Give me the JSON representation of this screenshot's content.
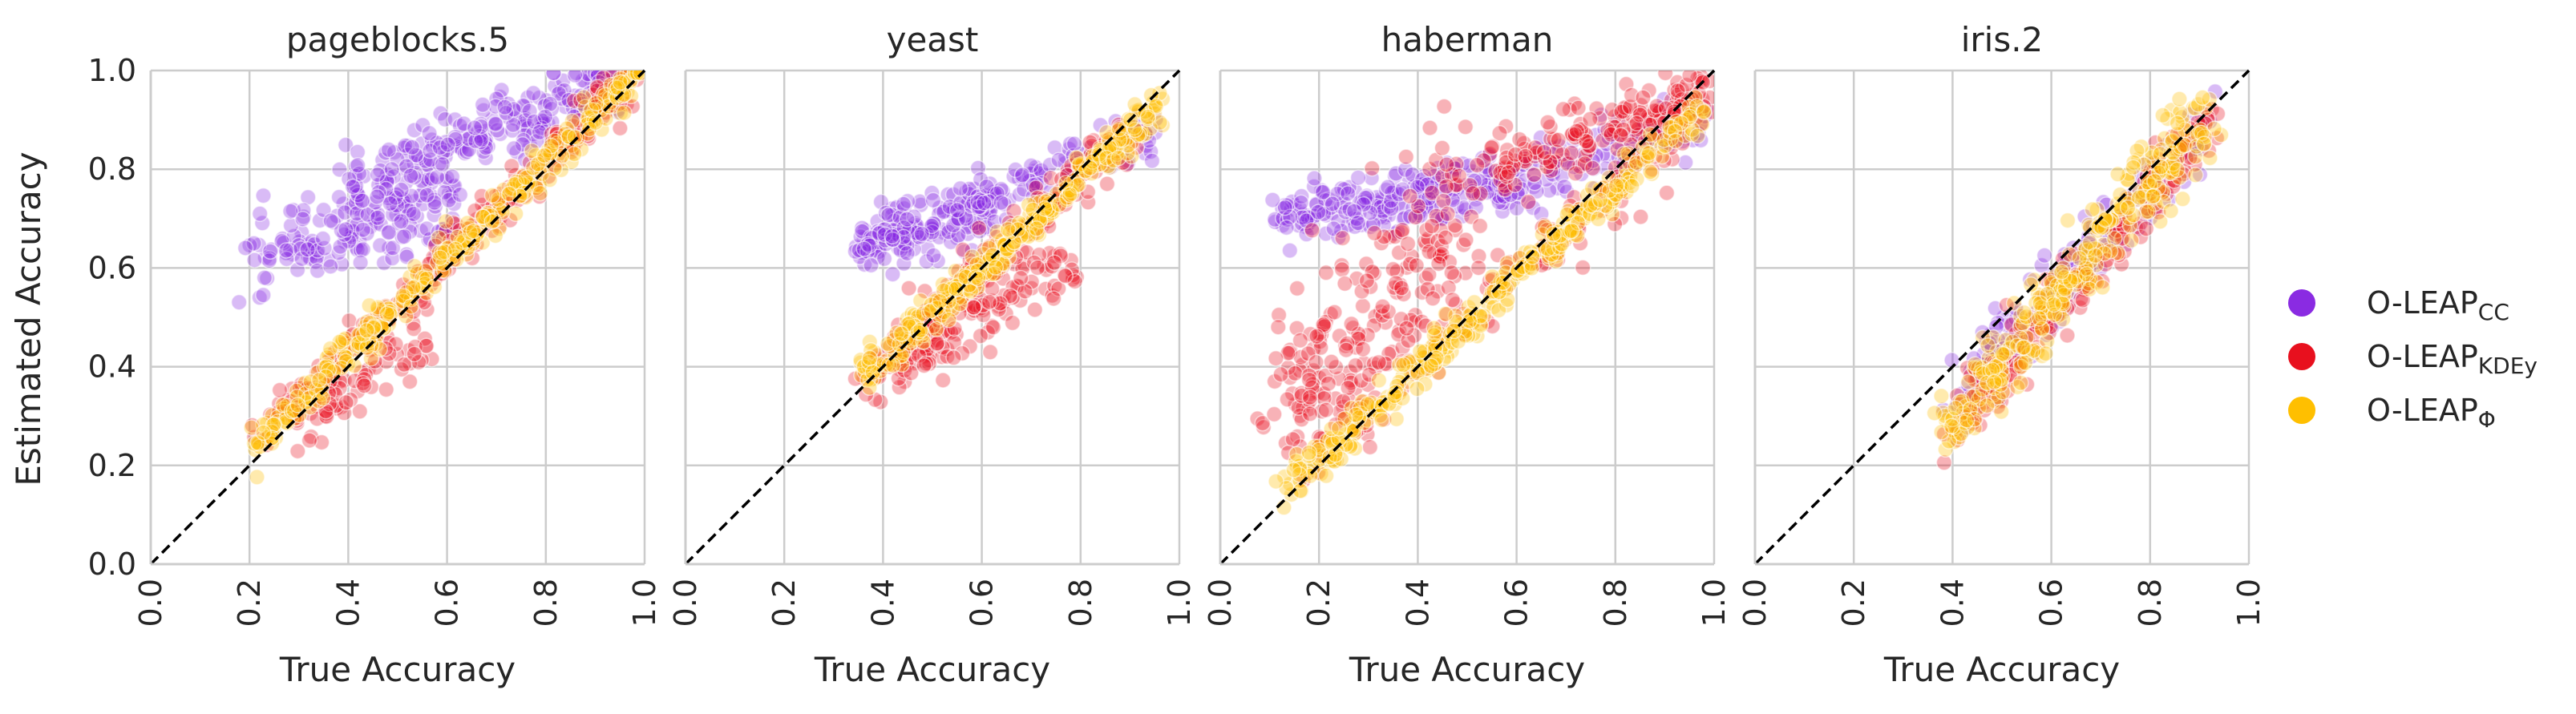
{
  "chart_data": {
    "type": "scatter",
    "layout": "facet-grid-1x4",
    "xlabel": "True Accuracy",
    "ylabel": "Estimated Accuracy",
    "xlim": [
      0.0,
      1.0
    ],
    "ylim": [
      0.0,
      1.0
    ],
    "xticks": [
      "0.0",
      "0.2",
      "0.4",
      "0.6",
      "0.8",
      "1.0"
    ],
    "yticks": [
      "0.0",
      "0.2",
      "0.4",
      "0.6",
      "0.8",
      "1.0"
    ],
    "grid": true,
    "diagonal_reference": "y = x, black dashed",
    "legend": {
      "placement": "right",
      "items": [
        {
          "base": "O-LEAP",
          "sub": "CC",
          "color": "#8a2be2"
        },
        {
          "base": "O-LEAP",
          "sub": "KDEy",
          "color": "#e8101e"
        },
        {
          "base": "O-LEAP",
          "sub": "Φ",
          "color": "#ffbf00"
        }
      ]
    },
    "panels": [
      {
        "title": "pageblocks.5",
        "series": [
          {
            "color": "#8a2be2",
            "clusters": [
              {
                "cx": [
                  0.2,
                  0.62
                ],
                "cy": [
                  0.64,
                  0.72
                ],
                "spread": 0.045,
                "n": 170
              },
              {
                "cx": [
                  0.4,
                  0.95
                ],
                "cy": [
                  0.76,
                  0.98
                ],
                "spread": 0.035,
                "n": 230
              }
            ]
          },
          {
            "color": "#e8101e",
            "clusters": [
              {
                "cx": [
                  0.22,
                  0.98
                ],
                "cy": [
                  0.25,
                  1.0
                ],
                "spread": 0.025,
                "n": 250
              },
              {
                "cx": [
                  0.3,
                  0.55
                ],
                "cy": [
                  0.28,
                  0.45
                ],
                "spread": 0.03,
                "n": 60
              }
            ]
          },
          {
            "color": "#ffbf00",
            "clusters": [
              {
                "cx": [
                  0.21,
                  0.99
                ],
                "cy": [
                  0.24,
                  1.0
                ],
                "spread": 0.02,
                "n": 320
              }
            ]
          }
        ]
      },
      {
        "title": "yeast",
        "series": [
          {
            "color": "#8a2be2",
            "clusters": [
              {
                "cx": [
                  0.35,
                  0.62
                ],
                "cy": [
                  0.64,
                  0.72
                ],
                "spread": 0.03,
                "n": 180
              },
              {
                "cx": [
                  0.58,
                  0.95
                ],
                "cy": [
                  0.72,
                  0.88
                ],
                "spread": 0.025,
                "n": 100
              }
            ]
          },
          {
            "color": "#e8101e",
            "clusters": [
              {
                "cx": [
                  0.36,
                  0.92
                ],
                "cy": [
                  0.37,
                  0.9
                ],
                "spread": 0.03,
                "n": 200
              },
              {
                "cx": [
                  0.42,
                  0.78
                ],
                "cy": [
                  0.38,
                  0.62
                ],
                "spread": 0.03,
                "n": 100
              }
            ]
          },
          {
            "color": "#ffbf00",
            "clusters": [
              {
                "cx": [
                  0.36,
                  0.96
                ],
                "cy": [
                  0.38,
                  0.93
                ],
                "spread": 0.02,
                "n": 300
              }
            ]
          }
        ]
      },
      {
        "title": "haberman",
        "series": [
          {
            "color": "#8a2be2",
            "clusters": [
              {
                "cx": [
                  0.12,
                  0.6
                ],
                "cy": [
                  0.7,
                  0.78
                ],
                "spread": 0.03,
                "n": 220
              },
              {
                "cx": [
                  0.55,
                  0.98
                ],
                "cy": [
                  0.76,
                  0.9
                ],
                "spread": 0.03,
                "n": 130
              }
            ]
          },
          {
            "color": "#e8101e",
            "clusters": [
              {
                "cx": [
                  0.12,
                  0.5
                ],
                "cy": [
                  0.3,
                  0.75
                ],
                "spread": 0.08,
                "n": 220
              },
              {
                "cx": [
                  0.55,
                  0.99
                ],
                "cy": [
                  0.8,
                  0.95
                ],
                "spread": 0.03,
                "n": 170
              },
              {
                "cx": [
                  0.2,
                  0.95
                ],
                "cy": [
                  0.25,
                  0.9
                ],
                "spread": 0.04,
                "n": 120
              }
            ]
          },
          {
            "color": "#ffbf00",
            "clusters": [
              {
                "cx": [
                  0.12,
                  0.98
                ],
                "cy": [
                  0.14,
                  0.93
                ],
                "spread": 0.02,
                "n": 340
              }
            ]
          }
        ]
      },
      {
        "title": "iris.2",
        "series": [
          {
            "color": "#8a2be2",
            "clusters": [
              {
                "cx": [
                  0.4,
                  0.92
                ],
                "cy": [
                  0.32,
                  0.9
                ],
                "spread": 0.035,
                "n": 180
              }
            ]
          },
          {
            "color": "#e8101e",
            "clusters": [
              {
                "cx": [
                  0.4,
                  0.93
                ],
                "cy": [
                  0.27,
                  0.9
                ],
                "spread": 0.035,
                "n": 200
              }
            ]
          },
          {
            "color": "#ffbf00",
            "clusters": [
              {
                "cx": [
                  0.38,
                  0.92
                ],
                "cy": [
                  0.26,
                  0.92
                ],
                "spread": 0.04,
                "n": 300
              }
            ]
          }
        ]
      }
    ]
  }
}
